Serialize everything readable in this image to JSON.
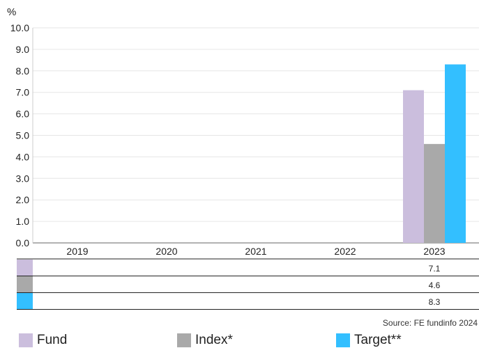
{
  "chart_data": {
    "type": "bar",
    "ylabel": "%",
    "ylim": [
      0,
      10
    ],
    "yticks": [
      "0.0",
      "1.0",
      "2.0",
      "3.0",
      "4.0",
      "5.0",
      "6.0",
      "7.0",
      "8.0",
      "9.0",
      "10.0"
    ],
    "categories": [
      "2019",
      "2020",
      "2021",
      "2022",
      "2023"
    ],
    "series": [
      {
        "name": "Fund",
        "color": "#cbbedd",
        "values": [
          null,
          null,
          null,
          null,
          7.1
        ]
      },
      {
        "name": "Index*",
        "color": "#a9a9a9",
        "values": [
          null,
          null,
          null,
          null,
          4.6
        ]
      },
      {
        "name": "Target**",
        "color": "#33bfff",
        "values": [
          null,
          null,
          null,
          null,
          8.3
        ]
      }
    ],
    "table": [
      {
        "series": "Fund",
        "labels": [
          "",
          "",
          "",
          "",
          "7.1"
        ]
      },
      {
        "series": "Index*",
        "labels": [
          "",
          "",
          "",
          "",
          "4.6"
        ]
      },
      {
        "series": "Target**",
        "labels": [
          "",
          "",
          "",
          "",
          "8.3"
        ]
      }
    ],
    "grid": true,
    "legend_position": "bottom"
  },
  "source": "Source: FE fundinfo 2024",
  "legend": [
    {
      "label": "Fund",
      "color": "#cbbedd"
    },
    {
      "label": "Index*",
      "color": "#a9a9a9"
    },
    {
      "label": "Target**",
      "color": "#33bfff"
    }
  ]
}
